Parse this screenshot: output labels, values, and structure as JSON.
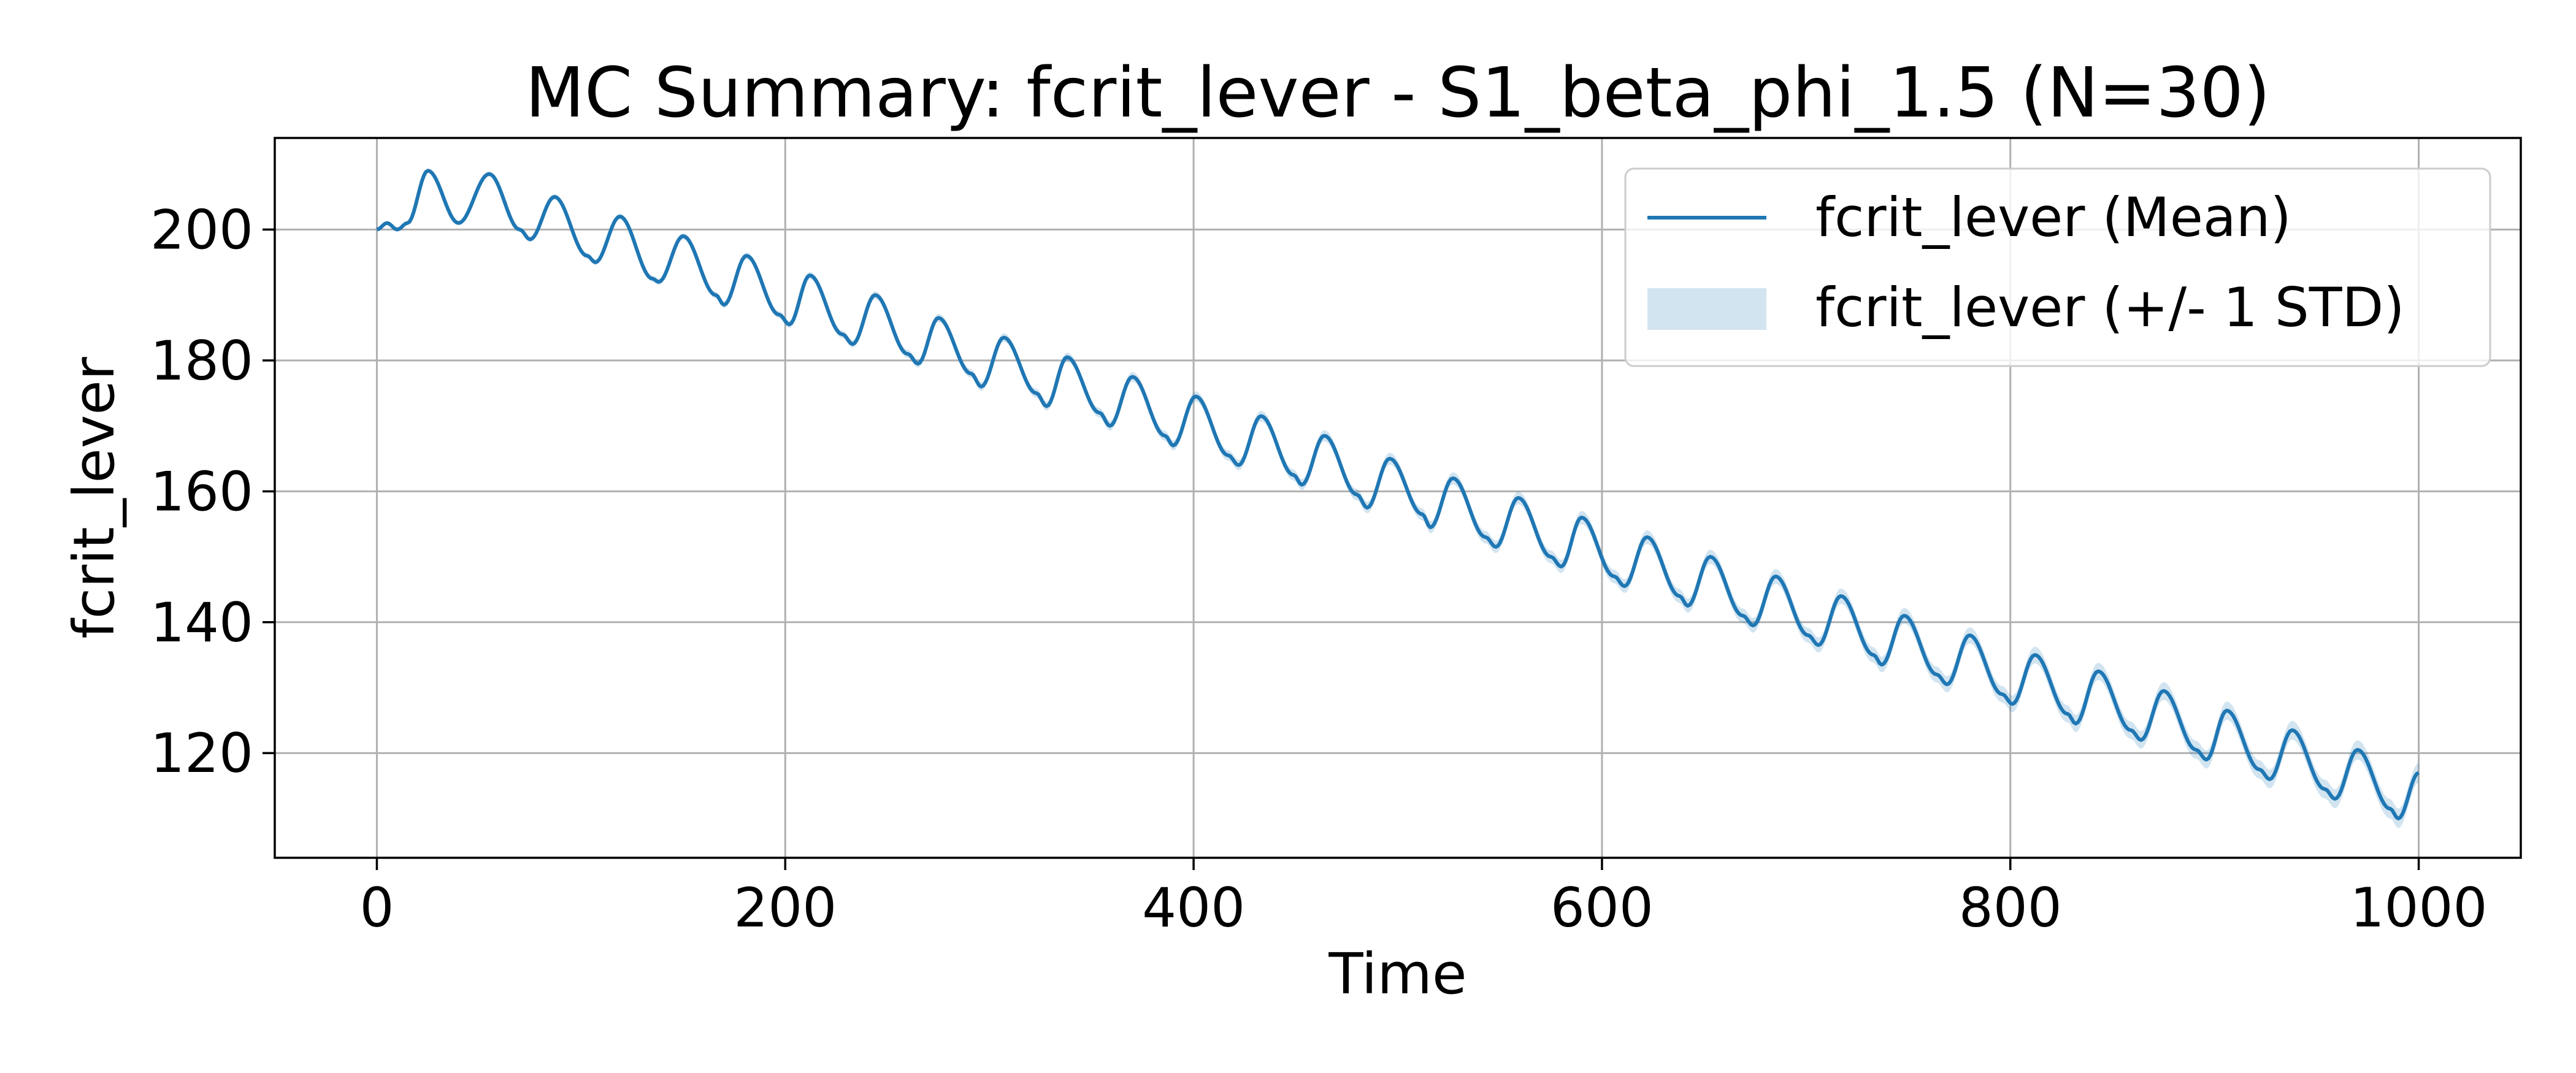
{
  "chart_data": {
    "type": "line",
    "title": "MC Summary: fcrit_lever - S1_beta_phi_1.5 (N=30)",
    "xlabel": "Time",
    "ylabel": "fcrit_lever",
    "xlim": [
      -50,
      1050
    ],
    "ylim": [
      104,
      214
    ],
    "xticks": [
      0,
      200,
      400,
      600,
      800,
      1000
    ],
    "yticks": [
      120,
      140,
      160,
      180,
      200
    ],
    "grid": true,
    "legend_position": "upper-right",
    "colors": {
      "line": "#1f77b4",
      "band": "#1f77b4"
    },
    "series": [
      {
        "name": "fcrit_lever (Mean)",
        "x": [
          0,
          5,
          10,
          15,
          25,
          40,
          55,
          70,
          75,
          87,
          103,
          107,
          119,
          135,
          138,
          150,
          166,
          170,
          181,
          197,
          202,
          212,
          228,
          233,
          244,
          260,
          265,
          275,
          291,
          296,
          307,
          323,
          328,
          338,
          354,
          359,
          370,
          386,
          390,
          401,
          417,
          422,
          433,
          449,
          453,
          464,
          480,
          485,
          496,
          512,
          516,
          527,
          543,
          548,
          559,
          575,
          580,
          590,
          606,
          611,
          622,
          638,
          642,
          653,
          669,
          674,
          685,
          701,
          706,
          717,
          733,
          737,
          748,
          764,
          769,
          780,
          796,
          801,
          812,
          828,
          832,
          843,
          859,
          864,
          875,
          891,
          896,
          906,
          922,
          927,
          938,
          954,
          959,
          970,
          986,
          990,
          1000
        ],
        "values": [
          200,
          201,
          200,
          201,
          209,
          201,
          208.5,
          200,
          198.5,
          205,
          196,
          195,
          202,
          192.5,
          192,
          199,
          190,
          188.5,
          196,
          187,
          185.5,
          193,
          184,
          182.5,
          190,
          181,
          179.5,
          186.5,
          178,
          176,
          183.5,
          175,
          173,
          180.5,
          172,
          170,
          177.5,
          168.5,
          167,
          174.5,
          165.5,
          164,
          171.5,
          162.5,
          161,
          168.5,
          159.5,
          157.5,
          165,
          156.5,
          154.5,
          162,
          153,
          151.5,
          159,
          150,
          148.5,
          156,
          147,
          145.5,
          153,
          144,
          142.5,
          150,
          141,
          139.5,
          147,
          138,
          136.5,
          144,
          135,
          133.5,
          141,
          132,
          130.5,
          138,
          129,
          127.5,
          135,
          126,
          124.5,
          132.5,
          123.5,
          122,
          129.5,
          120.5,
          119,
          126.5,
          117.5,
          116,
          123.5,
          114.5,
          113,
          120.5,
          111.5,
          110,
          117
        ]
      },
      {
        "name": "fcrit_lever (+/- 1 STD)",
        "type": "band",
        "std_start": 0.3,
        "std_end": 1.5
      }
    ]
  }
}
